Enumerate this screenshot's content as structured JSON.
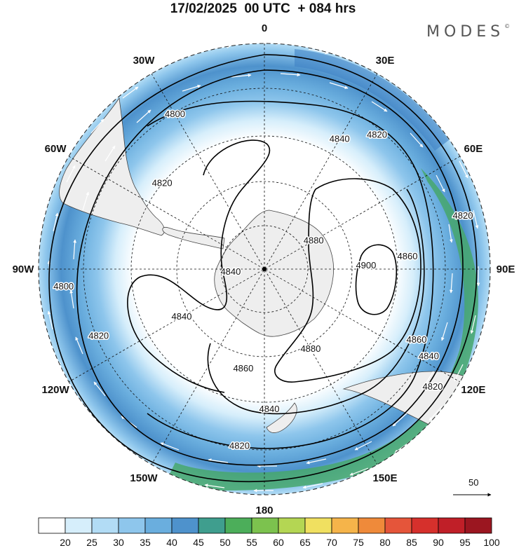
{
  "title": "17/02/2025  00 UTC  + 084 hrs",
  "logo": "MODES",
  "logo_mark": "©",
  "longitude_labels": [
    {
      "text": "0",
      "lon": 0
    },
    {
      "text": "30E",
      "lon": 30
    },
    {
      "text": "60E",
      "lon": 60
    },
    {
      "text": "90E",
      "lon": 90
    },
    {
      "text": "120E",
      "lon": 120
    },
    {
      "text": "150E",
      "lon": 150
    },
    {
      "text": "180",
      "lon": 180
    },
    {
      "text": "150W",
      "lon": -150
    },
    {
      "text": "120W",
      "lon": -120
    },
    {
      "text": "90W",
      "lon": -90
    },
    {
      "text": "60W",
      "lon": -60
    },
    {
      "text": "30W",
      "lon": -30
    }
  ],
  "contour_labels": [
    {
      "text": "4840",
      "lon": 30,
      "lat": -40
    },
    {
      "text": "4820",
      "lon": 40,
      "lat": -33
    },
    {
      "text": "4800",
      "lon": -30,
      "lat": -32
    },
    {
      "text": "4820",
      "lon": -50,
      "lat": -45
    },
    {
      "text": "4880",
      "lon": 60,
      "lat": -70
    },
    {
      "text": "4900",
      "lon": 88,
      "lat": -55
    },
    {
      "text": "4860",
      "lon": 85,
      "lat": -42
    },
    {
      "text": "4820",
      "lon": 75,
      "lat": -25
    },
    {
      "text": "4840",
      "lon": -95,
      "lat": -78
    },
    {
      "text": "4800",
      "lon": -95,
      "lat": -26
    },
    {
      "text": "4820",
      "lon": -112,
      "lat": -32
    },
    {
      "text": "4840",
      "lon": -120,
      "lat": -57
    },
    {
      "text": "4860",
      "lon": 115,
      "lat": -35
    },
    {
      "text": "4840",
      "lon": 118,
      "lat": -30
    },
    {
      "text": "4820",
      "lon": 125,
      "lat": -25
    },
    {
      "text": "4880",
      "lon": 150,
      "lat": -58
    },
    {
      "text": "4860",
      "lon": -168,
      "lat": -55
    },
    {
      "text": "4840",
      "lon": 178,
      "lat": -43
    },
    {
      "text": "4820",
      "lon": -172,
      "lat": -32
    }
  ],
  "colorbar": {
    "ticks": [
      "20",
      "25",
      "30",
      "35",
      "40",
      "45",
      "50",
      "55",
      "60",
      "65",
      "70",
      "75",
      "80",
      "85",
      "90",
      "95",
      "100"
    ],
    "colors": [
      "#ffffff",
      "#d6eefb",
      "#b2dcf5",
      "#8ec6ec",
      "#6aaede",
      "#4e92cc",
      "#3f9e8e",
      "#4cae5a",
      "#7cc24e",
      "#b4d653",
      "#f0e060",
      "#f5b44a",
      "#ef8a3a",
      "#e5553a",
      "#d6302c",
      "#c01f28",
      "#9b1620"
    ]
  },
  "reference_vector": "50",
  "colors": {
    "land": "#eeeeee",
    "coast": "#444444",
    "contour": "#000000",
    "grid": "#111111",
    "arrow": "#ffffff"
  }
}
